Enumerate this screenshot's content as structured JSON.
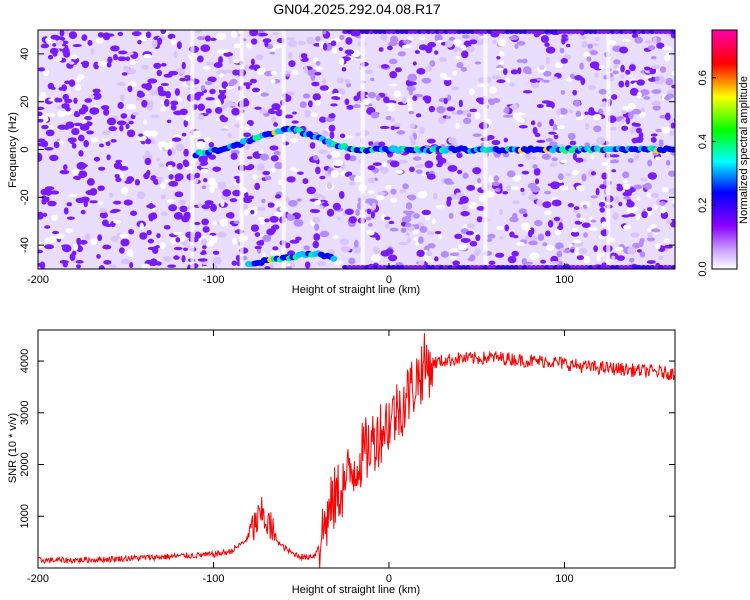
{
  "title": "GN04.2025.292.04.08.R17",
  "chart_data": [
    {
      "type": "heatmap",
      "xlabel": "Height of straight line (km)",
      "ylabel": "Frequency (Hz)",
      "xlim": [
        -200,
        163
      ],
      "ylim": [
        -50,
        50
      ],
      "x_ticks": [
        -200,
        -100,
        0,
        100
      ],
      "y_ticks": [
        -40,
        -20,
        0,
        20,
        40
      ],
      "colorbar": {
        "label": "Normalized spectral amplitude",
        "range": [
          0.0,
          0.75
        ],
        "ticks": [
          0.0,
          0.2,
          0.4,
          0.6
        ],
        "colormap": [
          "#ffffff",
          "#8b00ff",
          "#0000ff",
          "#00ffff",
          "#00ff00",
          "#ffff00",
          "#ff0000",
          "#ff00aa"
        ]
      },
      "features": [
        {
          "band": "doppler-ridge",
          "x": [
            -110,
            -90,
            -75,
            -55,
            -45,
            -35,
            -25,
            -15,
            0,
            50,
            100,
            163
          ],
          "frequency": [
            -2,
            1,
            5,
            9,
            6,
            3,
            1,
            0,
            0,
            0,
            0,
            0
          ]
        },
        {
          "band": "aliased-lower-ridge",
          "x": [
            -80,
            -65,
            -50,
            -40,
            -30
          ],
          "frequency": [
            -48,
            -46,
            -44,
            -44,
            -46
          ]
        }
      ]
    },
    {
      "type": "line",
      "xlabel": "Height of straight line (km)",
      "ylabel": "SNR (10 * v/v)",
      "xlim": [
        -200,
        163
      ],
      "ylim": [
        0,
        4600
      ],
      "x_ticks": [
        -200,
        -100,
        0,
        100
      ],
      "y_ticks": [
        1000,
        2000,
        3000,
        4000
      ],
      "series": [
        {
          "color": "#ff0000",
          "x": [
            -200,
            -180,
            -160,
            -140,
            -120,
            -100,
            -90,
            -82,
            -76,
            -72,
            -68,
            -62,
            -55,
            -48,
            -42,
            -36,
            -30,
            -25,
            -20,
            -15,
            -10,
            -5,
            0,
            5,
            10,
            15,
            20,
            25,
            30,
            40,
            50,
            60,
            70,
            80,
            90,
            100,
            110,
            120,
            130,
            140,
            150,
            163
          ],
          "y": [
            150,
            150,
            170,
            200,
            230,
            260,
            320,
            520,
            850,
            1050,
            800,
            450,
            280,
            200,
            250,
            900,
            1400,
            1650,
            1950,
            2200,
            2400,
            2650,
            2850,
            3050,
            3300,
            3600,
            3900,
            3960,
            4000,
            4050,
            4050,
            4070,
            4040,
            4000,
            4000,
            3950,
            3900,
            3870,
            3850,
            3820,
            3800,
            3750
          ]
        }
      ]
    }
  ]
}
